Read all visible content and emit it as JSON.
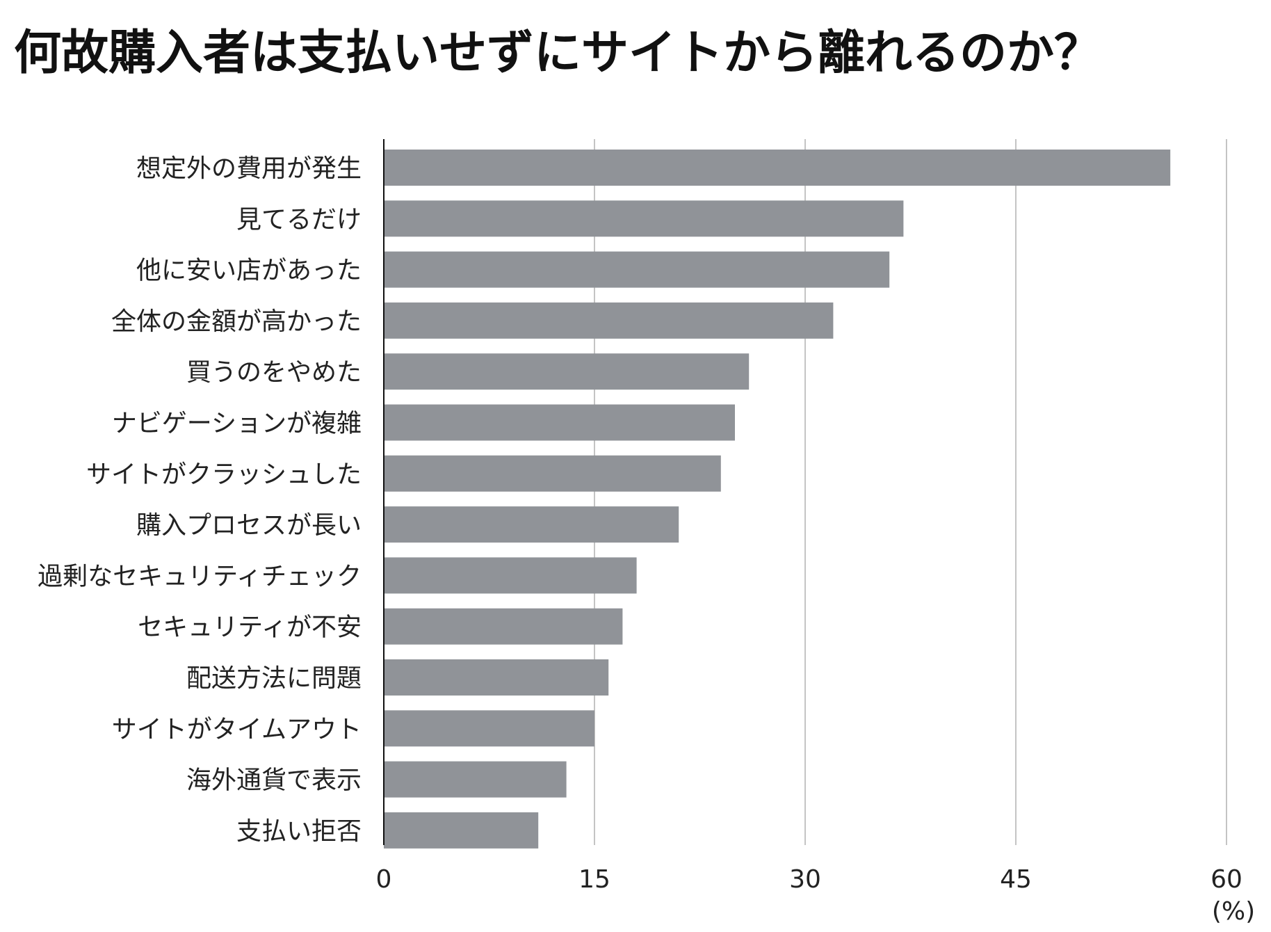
{
  "chart_data": {
    "type": "bar",
    "orientation": "horizontal",
    "title": "何故購入者は支払いせずにサイトから離れるのか？",
    "categories": [
      "想定外の費用が発生",
      "見てるだけ",
      "他に安い店があった",
      "全体の金額が高かった",
      "買うのをやめた",
      "ナビゲーションが複雑",
      "サイトがクラッシュした",
      "購入プロセスが長い",
      "過剰なセキュリティチェック",
      "セキュリティが不安",
      "配送方法に問題",
      "サイトがタイムアウト",
      "海外通貨で表示",
      "支払い拒否"
    ],
    "values": [
      56,
      37,
      36,
      32,
      26,
      25,
      24,
      21,
      18,
      17,
      16,
      15,
      13,
      11
    ],
    "xlim": [
      0,
      60
    ],
    "xticks": [
      0,
      15,
      30,
      45,
      60
    ],
    "xunit": "(%)",
    "grid": true,
    "colors": {
      "bar": "#909398",
      "grid": "#c4c4c4",
      "axis": "#111111"
    }
  }
}
